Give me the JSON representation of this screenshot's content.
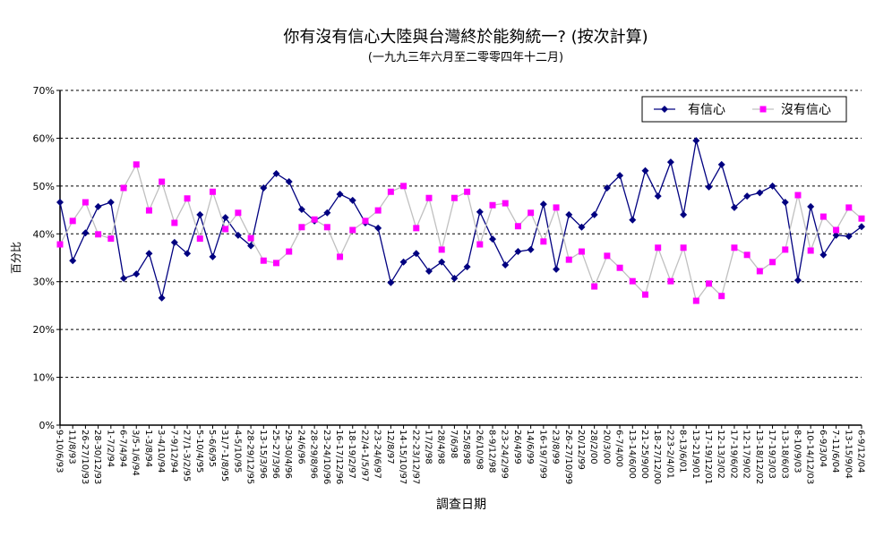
{
  "chart_data": {
    "type": "line",
    "title": "你有沒有信心大陸與台灣終於能夠統一? (按次計算)",
    "subtitle": "(一九九三年六月至二零零四年十二月)",
    "xlabel": "調查日期",
    "ylabel": "百分比",
    "ylim": [
      0,
      70
    ],
    "yticks": [
      0,
      10,
      20,
      30,
      40,
      50,
      60,
      70
    ],
    "ytick_suffix": "%",
    "grid": true,
    "legend_position": "top-right",
    "categories": [
      "9-10/6/93",
      "11/8/93",
      "26-27/10/93",
      "28-30/12/93",
      "1-7/2/94",
      "6-7/4/94",
      "3/5-1/6/94",
      "1-3/8/94",
      "3-4/10/94",
      "7-9/12/94",
      "27/1-3/2/95",
      "5-10/4/95",
      "5-6/6/95",
      "31/7-1/8/95",
      "4-5/10/95",
      "28-29/12/95",
      "13-15/3/96",
      "25-27/3/96",
      "29-30/4/96",
      "24/6/96",
      "28-29/8/96",
      "23-24/10/96",
      "16-17/12/96",
      "18-19/2/97",
      "22/4-1/5/97",
      "23-24/6/97",
      "12/8/97",
      "14-15/10/97",
      "22-23/12/97",
      "17/2/98",
      "28/4/98",
      "7/6/98",
      "25/8/98",
      "26/10/98",
      "8-9/12/98",
      "23-24/2/99",
      "26/4/99",
      "14/6/99",
      "16-19/7/99",
      "23/8/99",
      "26-27/10/99",
      "20/12/99",
      "28/2/00",
      "20/3/00",
      "6-7/4/00",
      "13-14/6/00",
      "21-25/9/00",
      "18-27/12/00",
      "223-2/4/01",
      "8-13/6/01",
      "13-21/9/01",
      "17-19/12/01",
      "12-13/3/02",
      "17-19/6/02",
      "12-17/9/02",
      "13-18/12/02",
      "17-19/3/03",
      "13-18/6/03",
      "8-10/9/03",
      "10-14/12/03",
      "6-9/3/04",
      "7-11/6/04",
      "13-15/9/04",
      "6-9/12/04"
    ],
    "series": [
      {
        "name": "有信心",
        "color": "#000080",
        "marker": "diamond",
        "values": [
          46.6,
          34.4,
          40.2,
          45.7,
          46.6,
          30.7,
          31.6,
          35.9,
          26.6,
          38.2,
          35.9,
          44.0,
          35.2,
          43.4,
          39.7,
          37.5,
          49.6,
          52.6,
          50.9,
          45.1,
          42.7,
          44.4,
          48.3,
          47.0,
          42.3,
          41.2,
          29.8,
          34.1,
          35.9,
          32.2,
          34.1,
          30.7,
          33.1,
          44.6,
          38.9,
          33.5,
          36.3,
          36.7,
          46.2,
          32.6,
          44.0,
          41.4,
          44.0,
          49.6,
          52.2,
          42.9,
          53.2,
          47.9,
          55.0,
          44.0,
          59.5,
          49.8,
          54.5,
          45.5,
          47.9,
          48.6,
          50.0,
          46.6,
          30.3,
          45.7,
          35.6,
          39.7,
          39.5,
          41.5
        ]
      },
      {
        "name": "沒有信心",
        "color": "#FF00FF",
        "line_color": "#C0C0C0",
        "marker": "square",
        "values": [
          37.8,
          42.7,
          46.6,
          39.9,
          39.0,
          49.6,
          54.5,
          44.9,
          50.9,
          42.3,
          47.4,
          39.0,
          48.8,
          41.0,
          44.4,
          39.1,
          34.4,
          33.9,
          36.3,
          41.4,
          43.0,
          41.4,
          35.2,
          40.8,
          42.7,
          44.9,
          48.8,
          50.0,
          41.2,
          47.5,
          36.7,
          47.5,
          48.8,
          37.8,
          46.0,
          46.4,
          41.6,
          44.4,
          38.4,
          45.5,
          34.6,
          36.3,
          29.0,
          35.4,
          32.9,
          30.1,
          27.3,
          37.1,
          30.1,
          37.1,
          26.0,
          29.6,
          27.0,
          37.1,
          35.6,
          32.2,
          34.1,
          36.7,
          48.1,
          36.5,
          43.6,
          40.8,
          45.5,
          43.2
        ]
      }
    ]
  }
}
